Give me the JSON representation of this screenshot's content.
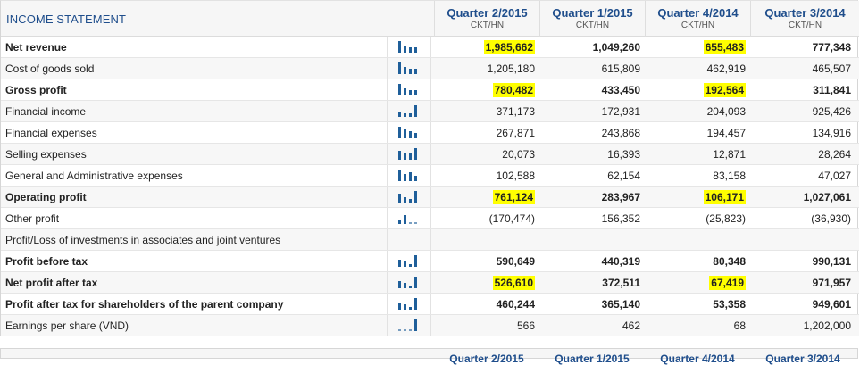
{
  "title": "INCOME STATEMENT",
  "quarters": [
    {
      "label": "Quarter 2/2015",
      "unit": "CKT/HN"
    },
    {
      "label": "Quarter 1/2015",
      "unit": "CKT/HN"
    },
    {
      "label": "Quarter 4/2014",
      "unit": "CKT/HN"
    },
    {
      "label": "Quarter 3/2014",
      "unit": "CKT/HN"
    }
  ],
  "highlight_color": "#ffff00",
  "accent_color": "#1f4e8c",
  "rows": [
    {
      "label": "Net revenue",
      "bold": true,
      "chart": true,
      "values": [
        "1,985,662",
        "1,049,260",
        "655,483",
        "777,348"
      ],
      "highlight": [
        true,
        false,
        true,
        false
      ]
    },
    {
      "label": "Cost of goods sold",
      "bold": false,
      "chart": true,
      "values": [
        "1,205,180",
        "615,809",
        "462,919",
        "465,507"
      ],
      "highlight": [
        false,
        false,
        false,
        false
      ]
    },
    {
      "label": "Gross profit",
      "bold": true,
      "chart": true,
      "values": [
        "780,482",
        "433,450",
        "192,564",
        "311,841"
      ],
      "highlight": [
        true,
        false,
        true,
        false
      ]
    },
    {
      "label": "Financial income",
      "bold": false,
      "chart": true,
      "values": [
        "371,173",
        "172,931",
        "204,093",
        "925,426"
      ],
      "highlight": [
        false,
        false,
        false,
        false
      ]
    },
    {
      "label": "Financial expenses",
      "bold": false,
      "chart": true,
      "values": [
        "267,871",
        "243,868",
        "194,457",
        "134,916"
      ],
      "highlight": [
        false,
        false,
        false,
        false
      ]
    },
    {
      "label": "Selling expenses",
      "bold": false,
      "chart": true,
      "values": [
        "20,073",
        "16,393",
        "12,871",
        "28,264"
      ],
      "highlight": [
        false,
        false,
        false,
        false
      ]
    },
    {
      "label": "General and Administrative expenses",
      "bold": false,
      "chart": true,
      "values": [
        "102,588",
        "62,154",
        "83,158",
        "47,027"
      ],
      "highlight": [
        false,
        false,
        false,
        false
      ]
    },
    {
      "label": "Operating profit",
      "bold": true,
      "chart": true,
      "values": [
        "761,124",
        "283,967",
        "106,171",
        "1,027,061"
      ],
      "highlight": [
        true,
        false,
        true,
        false
      ]
    },
    {
      "label": "Other profit",
      "bold": false,
      "chart": true,
      "values": [
        "(170,474)",
        "156,352",
        "(25,823)",
        "(36,930)"
      ],
      "highlight": [
        false,
        false,
        false,
        false
      ]
    },
    {
      "label": "Profit/Loss of investments in associates and joint ventures",
      "bold": false,
      "chart": false,
      "values": [
        "",
        "",
        "",
        ""
      ],
      "highlight": [
        false,
        false,
        false,
        false
      ]
    },
    {
      "label": "Profit before tax",
      "bold": true,
      "chart": true,
      "values": [
        "590,649",
        "440,319",
        "80,348",
        "990,131"
      ],
      "highlight": [
        false,
        false,
        false,
        false
      ]
    },
    {
      "label": "Net profit after tax",
      "bold": true,
      "chart": true,
      "values": [
        "526,610",
        "372,511",
        "67,419",
        "971,957"
      ],
      "highlight": [
        true,
        false,
        true,
        false
      ]
    },
    {
      "label": "Profit after tax for shareholders of the parent company",
      "bold": true,
      "chart": true,
      "values": [
        "460,244",
        "365,140",
        "53,358",
        "949,601"
      ],
      "highlight": [
        false,
        false,
        false,
        false
      ]
    },
    {
      "label": "Earnings per share (VND)",
      "bold": false,
      "chart": true,
      "values": [
        "566",
        "462",
        "68",
        "1,202,000"
      ],
      "highlight": [
        false,
        false,
        false,
        false
      ]
    }
  ]
}
